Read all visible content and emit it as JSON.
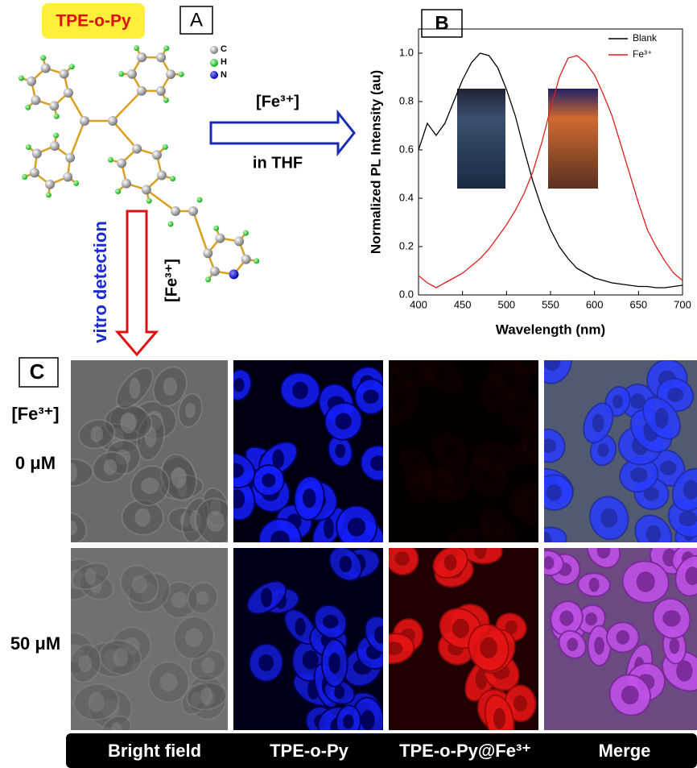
{
  "panel_a": {
    "label": "A",
    "compound": "TPE-o-Py",
    "atoms": [
      "C",
      "H",
      "N"
    ],
    "arrow_right_top": "[Fe³⁺]",
    "arrow_right_bottom": "in THF",
    "arrow_down_left": "vitro detection",
    "arrow_down_right": "[Fe³⁺]"
  },
  "chart_data": {
    "type": "line",
    "panel_label": "B",
    "x_label": "Wavelength (nm)",
    "y_label": "Normalized PL Intensity (au)",
    "x": [
      400,
      410,
      420,
      430,
      440,
      450,
      460,
      470,
      480,
      490,
      500,
      510,
      520,
      530,
      540,
      550,
      560,
      570,
      580,
      590,
      600,
      610,
      620,
      630,
      640,
      650,
      660,
      670,
      680,
      690,
      700
    ],
    "series": [
      {
        "name": "Blank",
        "color": "#000000",
        "values": [
          0.6,
          0.71,
          0.66,
          0.71,
          0.8,
          0.89,
          0.96,
          1.0,
          0.99,
          0.94,
          0.85,
          0.74,
          0.6,
          0.47,
          0.36,
          0.27,
          0.2,
          0.15,
          0.11,
          0.09,
          0.07,
          0.06,
          0.05,
          0.045,
          0.04,
          0.035,
          0.035,
          0.03,
          0.03,
          0.035,
          0.04
        ]
      },
      {
        "name": "Fe³⁺",
        "color": "#e02020",
        "values": [
          0.08,
          0.05,
          0.03,
          0.05,
          0.07,
          0.09,
          0.12,
          0.15,
          0.19,
          0.24,
          0.29,
          0.35,
          0.42,
          0.51,
          0.63,
          0.77,
          0.9,
          0.98,
          0.99,
          0.96,
          0.91,
          0.83,
          0.74,
          0.62,
          0.5,
          0.38,
          0.27,
          0.2,
          0.14,
          0.09,
          0.06
        ]
      }
    ],
    "xlim": [
      400,
      700
    ],
    "xticks": [
      400,
      450,
      500,
      550,
      600,
      650,
      700
    ],
    "ylim": [
      0,
      1.1
    ],
    "yticks": [
      {
        "value": 0,
        "label": "0.0"
      },
      0.2,
      0.4,
      0.6,
      0.8,
      {
        "value": 1,
        "label": "1.0"
      }
    ],
    "legend": "upper right"
  },
  "panel_c": {
    "label": "C",
    "row_header": "[Fe³⁺]",
    "rows": [
      "0 μM",
      "50 μM"
    ],
    "columns": [
      "Bright field",
      "TPE-o-Py",
      "TPE-o-Py@Fe³⁺",
      "Merge"
    ]
  }
}
